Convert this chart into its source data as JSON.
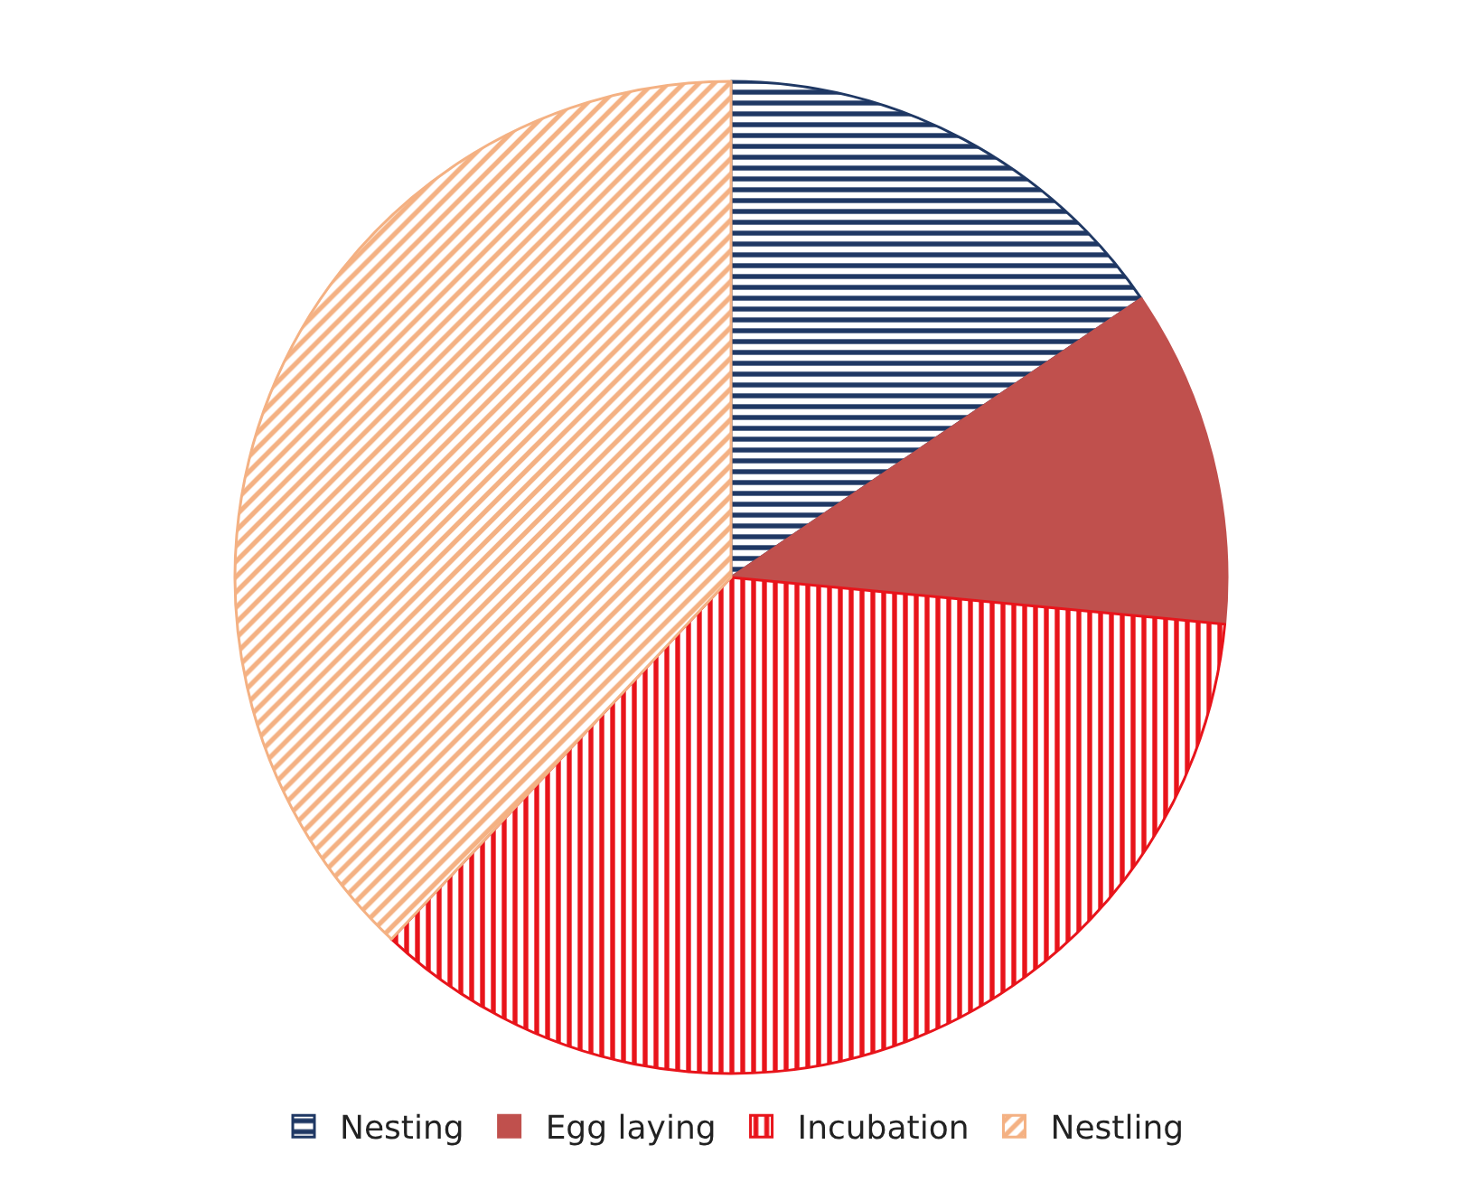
{
  "chart_data": {
    "type": "pie",
    "categories": [
      "Nesting",
      "Egg laying",
      "Incubation",
      "Nestling"
    ],
    "values": [
      15.5,
      11,
      35.5,
      38
    ],
    "colors": [
      "#1f3864",
      "#c0504d",
      "#e8141b",
      "#f4b183"
    ],
    "legend": "bottom"
  }
}
